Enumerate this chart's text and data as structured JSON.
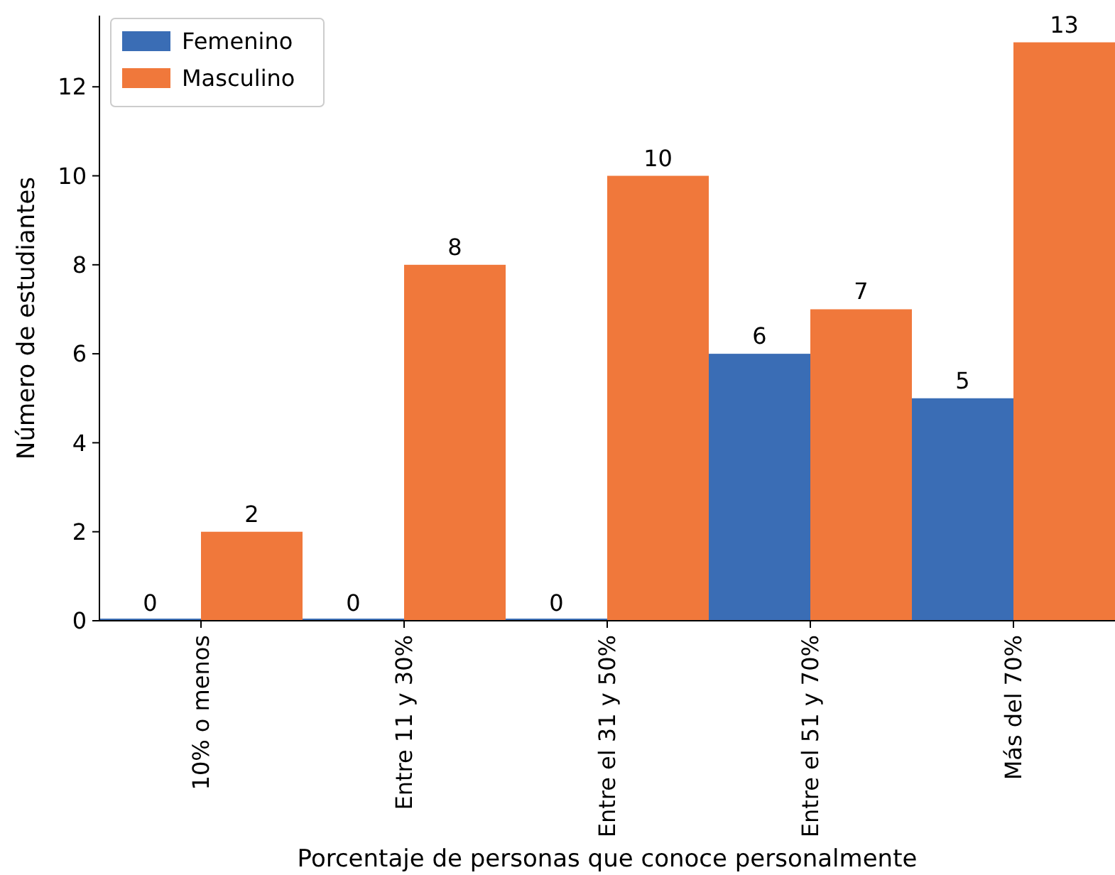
{
  "chart_data": {
    "type": "bar",
    "xlabel": "Porcentaje de personas que conoce personalmente",
    "ylabel": "Número de estudiantes",
    "categories": [
      "10% o menos",
      "Entre 11 y 30%",
      "Entre el 31 y 50%",
      "Entre el 51 y 70%",
      "Más del 70%"
    ],
    "series": [
      {
        "name": "Femenino",
        "color": "#3a6db5",
        "values": [
          0,
          0,
          0,
          6,
          5
        ]
      },
      {
        "name": "Masculino",
        "color": "#f0783b",
        "values": [
          2,
          8,
          10,
          7,
          13
        ]
      }
    ],
    "ylim": [
      0,
      13.6
    ],
    "yticks": [
      0,
      2,
      4,
      6,
      8,
      10,
      12
    ],
    "data_labels": true,
    "legend": "top left",
    "grid": false
  }
}
